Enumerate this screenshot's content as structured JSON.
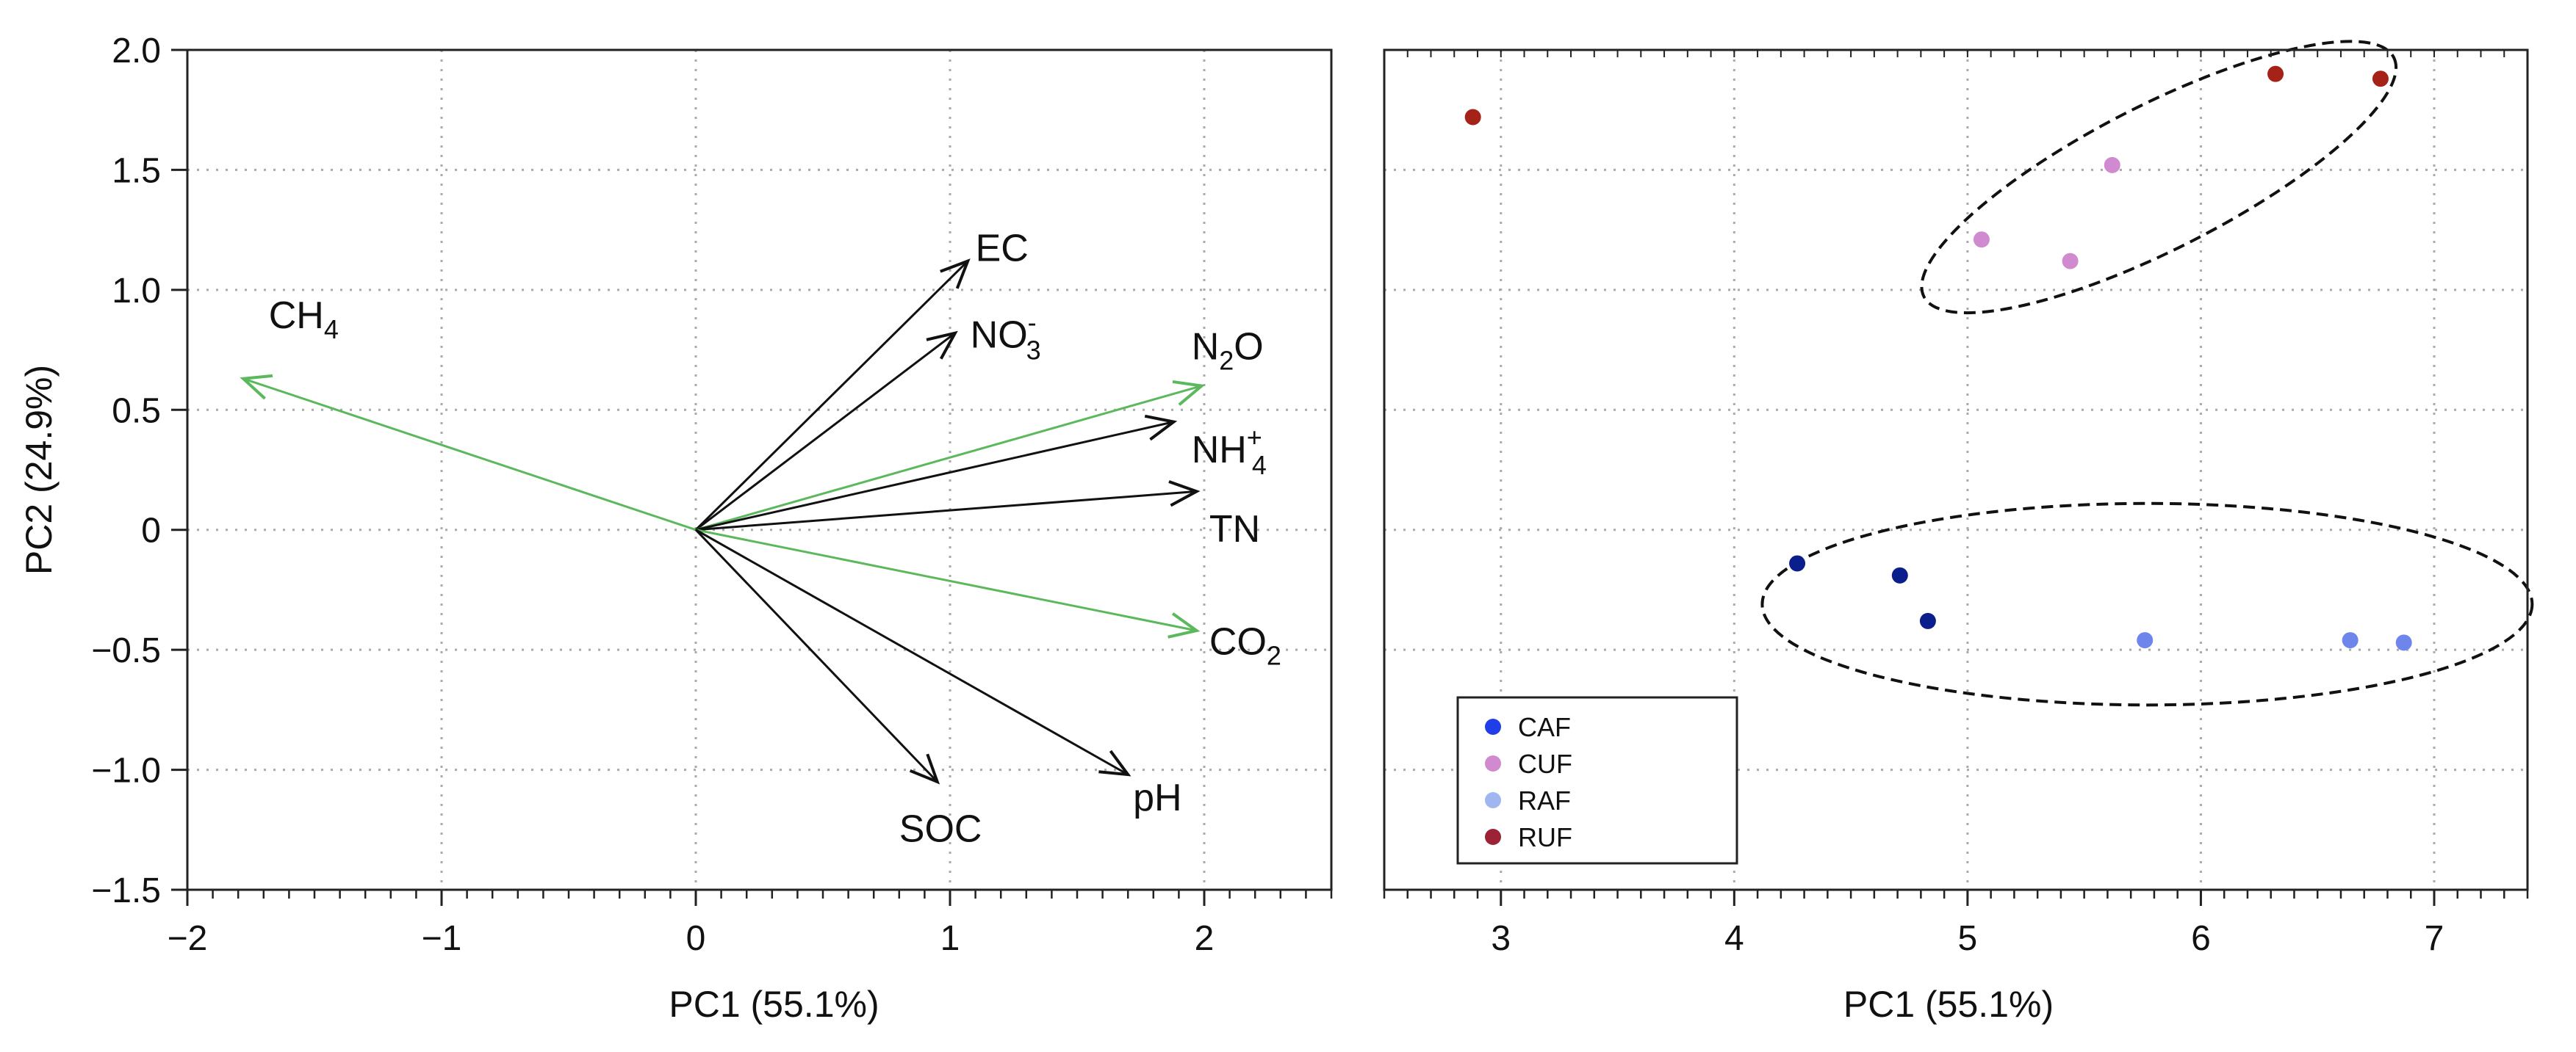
{
  "chart_data": [
    {
      "type": "biplot",
      "xlabel": "PC1 (55.1%)",
      "ylabel": "PC2 (24.9%)",
      "xlim": [
        -2,
        2.5
      ],
      "ylim": [
        -1.5,
        2.0
      ],
      "xticks": [
        -2,
        -1,
        0,
        1,
        2
      ],
      "xtick_labels": [
        "−2",
        "−1",
        "0",
        "1",
        "2"
      ],
      "yticks": [
        -1.5,
        -1.0,
        -0.5,
        0,
        0.5,
        1.0,
        1.5,
        2.0
      ],
      "ytick_labels": [
        "−1.5",
        "−1.0",
        "−0.5",
        "0",
        "0.5",
        "1.0",
        "1.5",
        "2.0"
      ],
      "grid": true,
      "vectors": [
        {
          "name": "CH4",
          "label_main": "CH",
          "label_sub": "4",
          "label_sup": "",
          "x": -1.78,
          "y": 0.63,
          "color": "#5cb85c",
          "label_x": -1.68,
          "label_y": 0.84
        },
        {
          "name": "EC",
          "label_main": "EC",
          "label_sub": "",
          "label_sup": "",
          "x": 1.07,
          "y": 1.12,
          "color": "#111111",
          "label_x": 1.1,
          "label_y": 1.12
        },
        {
          "name": "NO3-",
          "label_main": "NO",
          "label_sub": "3",
          "label_sup": "-",
          "x": 1.02,
          "y": 0.82,
          "color": "#111111",
          "label_x": 1.08,
          "label_y": 0.76
        },
        {
          "name": "N2O",
          "label_main": "N",
          "label_sub": "2",
          "label_sup": "",
          "label_tail": "O",
          "x": 1.99,
          "y": 0.6,
          "color": "#5cb85c",
          "label_x": 1.95,
          "label_y": 0.71
        },
        {
          "name": "NH4+",
          "label_main": "NH",
          "label_sub": "4",
          "label_sup": "+",
          "x": 1.88,
          "y": 0.45,
          "color": "#111111",
          "label_x": 1.95,
          "label_y": 0.28
        },
        {
          "name": "TN",
          "label_main": "TN",
          "label_sub": "",
          "label_sup": "",
          "x": 1.97,
          "y": 0.16,
          "color": "#111111",
          "label_x": 2.02,
          "label_y": -0.05
        },
        {
          "name": "CO2",
          "label_main": "CO",
          "label_sub": "2",
          "label_sup": "",
          "x": 1.97,
          "y": -0.42,
          "color": "#5cb85c",
          "label_x": 2.02,
          "label_y": -0.52
        },
        {
          "name": "SOC",
          "label_main": "SOC",
          "label_sub": "",
          "label_sup": "",
          "x": 0.95,
          "y": -1.05,
          "color": "#111111",
          "label_x": 0.8,
          "label_y": -1.3
        },
        {
          "name": "pH",
          "label_main": "pH",
          "label_sub": "",
          "label_sup": "",
          "x": 1.7,
          "y": -1.02,
          "color": "#111111",
          "label_x": 1.72,
          "label_y": -1.17
        }
      ]
    },
    {
      "type": "scatter",
      "xlabel": "PC1 (55.1%)",
      "xlim": [
        2.5,
        7.4
      ],
      "ylim": [
        -1.5,
        2.0
      ],
      "xticks": [
        3,
        4,
        5,
        6,
        7
      ],
      "xtick_labels": [
        "3",
        "4",
        "5",
        "6",
        "7"
      ],
      "grid": true,
      "legend_position": "bottom-left",
      "series": [
        {
          "name": "CAF",
          "color": "#1f3de8",
          "points": [
            [
              4.27,
              -0.14
            ],
            [
              4.71,
              -0.19
            ],
            [
              4.83,
              -0.38
            ]
          ],
          "point_color": "#0b1f8c"
        },
        {
          "name": "CUF",
          "color": "#d08ad0",
          "points": [
            [
              5.06,
              1.21
            ],
            [
              5.44,
              1.12
            ],
            [
              5.62,
              1.52
            ]
          ],
          "point_color": "#d08ad0"
        },
        {
          "name": "RAF",
          "color": "#9fb6ee",
          "points": [
            [
              5.76,
              -0.46
            ],
            [
              6.64,
              -0.46
            ],
            [
              6.87,
              -0.47
            ]
          ],
          "point_color": "#6e86ec"
        },
        {
          "name": "RUF",
          "color": "#9b2335",
          "points": [
            [
              2.88,
              1.72
            ],
            [
              6.32,
              1.9
            ],
            [
              6.77,
              1.88
            ]
          ],
          "point_color": "#a52218"
        }
      ],
      "ellipses": [
        {
          "group": "upper",
          "cx": 5.82,
          "cy": 1.47,
          "rx": 1.13,
          "ry": 0.3,
          "angle_deg": 27
        },
        {
          "group": "lower",
          "cx": 5.77,
          "cy": -0.31,
          "rx": 1.65,
          "ry": 0.42,
          "angle_deg": 0
        }
      ]
    }
  ]
}
